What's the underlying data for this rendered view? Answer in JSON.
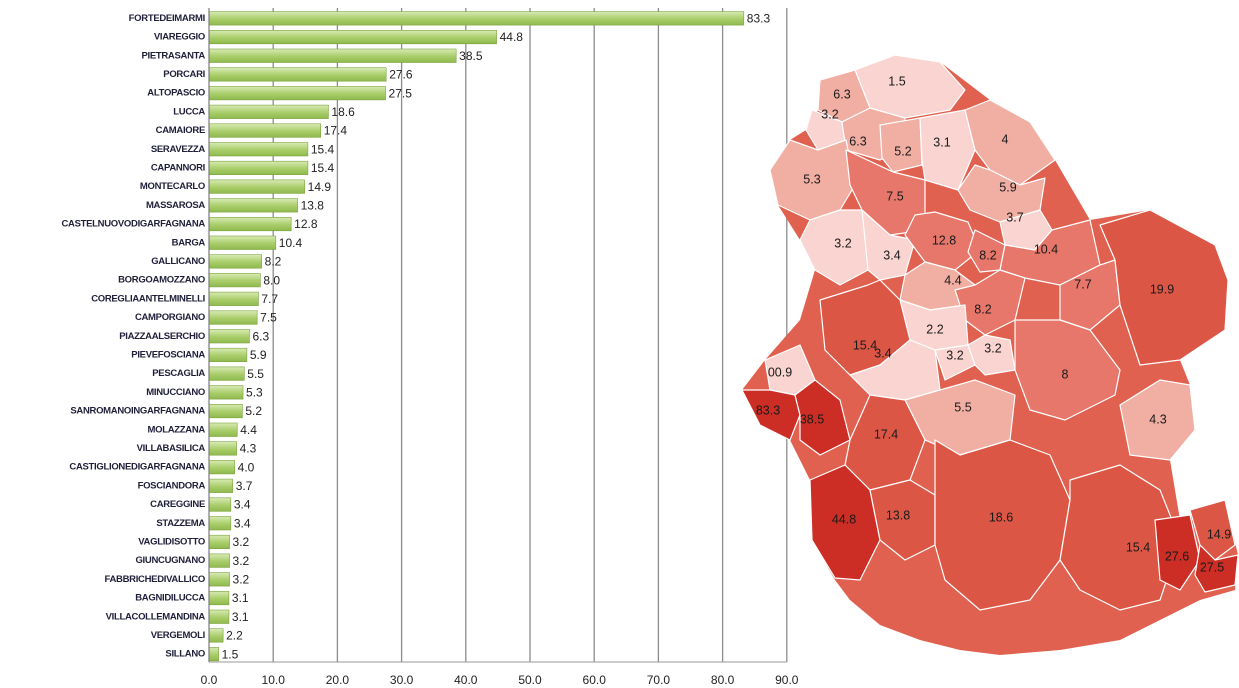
{
  "chart_data": [
    {
      "type": "bar",
      "orientation": "horizontal",
      "categories": [
        "FORTEDEIMARMI",
        "VIAREGGIO",
        "PIETRASANTA",
        "PORCARI",
        "ALTOPASCIO",
        "LUCCA",
        "CAMAIORE",
        "SERAVEZZA",
        "CAPANNORI",
        "MONTECARLO",
        "MASSAROSA",
        "CASTELNUOVODIGARFAGNANA",
        "BARGA",
        "GALLICANO",
        "BORGOAMOZZANO",
        "COREGLIAANTELMINELLI",
        "CAMPORGIANO",
        "PIAZZAALSERCHIO",
        "PIEVEFOSCIANA",
        "PESCAGLIA",
        "MINUCCIANO",
        "SANROMANOINGARFAGNANA",
        "MOLAZZANA",
        "VILLABASILICA",
        "CASTIGLIONEDIGARFAGNANA",
        "FOSCIANDORA",
        "CAREGGINE",
        "STAZZEMA",
        "VAGLIDISOTTO",
        "GIUNCUGNANO",
        "FABBRICHEDIVALLICO",
        "BAGNIDILUCCA",
        "VILLACOLLEMANDINA",
        "VERGEMOLI",
        "SILLANO"
      ],
      "values": [
        83.3,
        44.8,
        38.5,
        27.6,
        27.5,
        18.6,
        17.4,
        15.4,
        15.4,
        14.9,
        13.8,
        12.8,
        10.4,
        8.2,
        8.0,
        7.7,
        7.5,
        6.3,
        5.9,
        5.5,
        5.3,
        5.2,
        4.4,
        4.3,
        4.0,
        3.7,
        3.4,
        3.4,
        3.2,
        3.2,
        3.2,
        3.1,
        3.1,
        2.2,
        1.5
      ],
      "value_labels": [
        "83.3",
        "44.8",
        "38.5",
        "27.6",
        "27.5",
        "18.6",
        "17.4",
        "15.4",
        "15.4",
        "14.9",
        "13.8",
        "12.8",
        "10.4",
        "8.2",
        "8.0",
        "7.7",
        "7.5",
        "6.3",
        "5.9",
        "5.5",
        "5.3",
        "5.2",
        "4.4",
        "4.3",
        "4.0",
        "3.7",
        "3.4",
        "3.4",
        "3.2",
        "3.2",
        "3.2",
        "3.1",
        "3.1",
        "2.2",
        "1.5"
      ],
      "xlim": [
        0,
        90
      ],
      "xticks": [
        "0.0",
        "10.0",
        "20.0",
        "30.0",
        "40.0",
        "50.0",
        "60.0",
        "70.0",
        "80.0",
        "90.0"
      ],
      "grid": true,
      "bar_color": "#a9cd6a",
      "title": "",
      "xlabel": "",
      "ylabel": ""
    },
    {
      "type": "choropleth",
      "regions": [
        {
          "label": "1.5",
          "value": 1.5
        },
        {
          "label": "6.3",
          "value": 6.3
        },
        {
          "label": "3.2",
          "value": 3.2
        },
        {
          "label": "6.3",
          "value": 6.3
        },
        {
          "label": "5.2",
          "value": 5.2
        },
        {
          "label": "3.1",
          "value": 3.1
        },
        {
          "label": "4",
          "value": 4.0
        },
        {
          "label": "5.3",
          "value": 5.3
        },
        {
          "label": "7.5",
          "value": 7.5
        },
        {
          "label": "5.9",
          "value": 5.9
        },
        {
          "label": "3.7",
          "value": 3.7
        },
        {
          "label": "3.2",
          "value": 3.2
        },
        {
          "label": "3.4",
          "value": 3.4
        },
        {
          "label": "12.8",
          "value": 12.8
        },
        {
          "label": "8.2",
          "value": 8.2
        },
        {
          "label": "10.4",
          "value": 10.4
        },
        {
          "label": "4.4",
          "value": 4.4
        },
        {
          "label": "7.7",
          "value": 7.7
        },
        {
          "label": "8.2",
          "value": 8.2
        },
        {
          "label": "19.9",
          "value": 19.9
        },
        {
          "label": "2.2",
          "value": 2.2
        },
        {
          "label": "15.4",
          "value": 15.4
        },
        {
          "label": "3.4",
          "value": 3.4
        },
        {
          "label": "3.2",
          "value": 3.2
        },
        {
          "label": "3.2",
          "value": 3.2
        },
        {
          "label": "8",
          "value": 8.0
        },
        {
          "label": "00.9",
          "value": 0.9
        },
        {
          "label": "83.3",
          "value": 83.3
        },
        {
          "label": "38.5",
          "value": 38.5
        },
        {
          "label": "5.5",
          "value": 5.5
        },
        {
          "label": "4.3",
          "value": 4.3
        },
        {
          "label": "17.4",
          "value": 17.4
        },
        {
          "label": "44.8",
          "value": 44.8
        },
        {
          "label": "13.8",
          "value": 13.8
        },
        {
          "label": "18.6",
          "value": 18.6
        },
        {
          "label": "15.4",
          "value": 15.4
        },
        {
          "label": "27.6",
          "value": 27.6
        },
        {
          "label": "14.9",
          "value": 14.9
        },
        {
          "label": "27.5",
          "value": 27.5
        }
      ],
      "color_scale": [
        "#f9d4d0",
        "#f1aea3",
        "#e6776a",
        "#dc5646",
        "#cc2d25"
      ]
    }
  ]
}
